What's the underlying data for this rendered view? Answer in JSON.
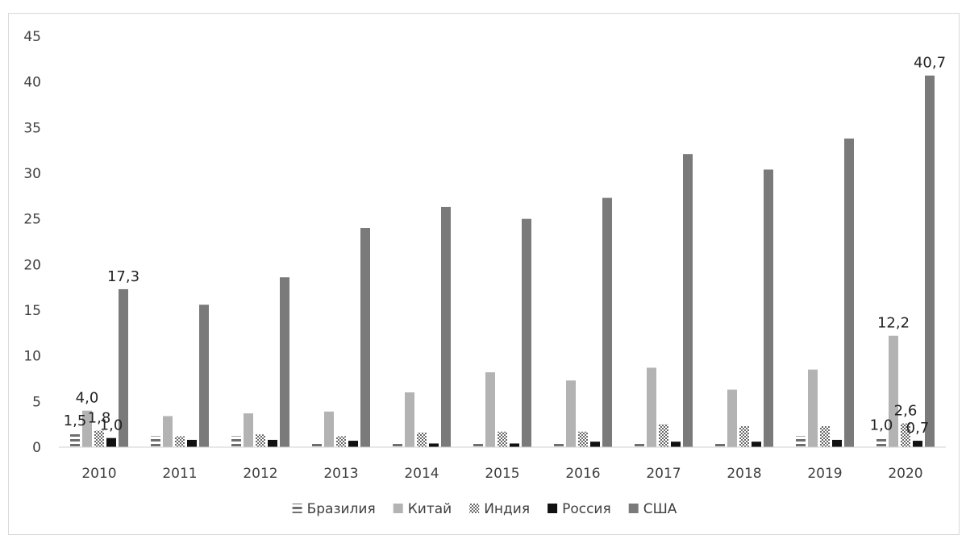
{
  "chart_data": {
    "type": "bar",
    "title": "",
    "xlabel": "",
    "ylabel": "",
    "ylim": [
      0,
      45
    ],
    "yticks": [
      0,
      5,
      10,
      15,
      20,
      25,
      30,
      35,
      40,
      45
    ],
    "grid": false,
    "legend_position": "bottom",
    "categories": [
      "2010",
      "2011",
      "2012",
      "2013",
      "2014",
      "2015",
      "2016",
      "2017",
      "2018",
      "2019",
      "2020"
    ],
    "series": [
      {
        "name": "Бразилия",
        "color": "#7f7f7f",
        "pattern": "striped",
        "values": [
          1.5,
          1.2,
          1.2,
          0.5,
          0.5,
          0.5,
          0.5,
          0.5,
          0.5,
          1.2,
          1.0
        ]
      },
      {
        "name": "Китай",
        "color": "#b3b3b3",
        "pattern": "solid",
        "values": [
          4.0,
          3.4,
          3.7,
          3.9,
          6.0,
          8.2,
          7.3,
          8.7,
          6.3,
          8.5,
          12.2
        ]
      },
      {
        "name": "Индия",
        "color": "#9a9a9a",
        "pattern": "checkered",
        "values": [
          1.8,
          1.2,
          1.4,
          1.2,
          1.6,
          1.7,
          1.7,
          2.5,
          2.3,
          2.3,
          2.6
        ]
      },
      {
        "name": "Россия",
        "color": "#111111",
        "pattern": "solid",
        "values": [
          1.0,
          0.8,
          0.8,
          0.7,
          0.4,
          0.4,
          0.6,
          0.6,
          0.6,
          0.8,
          0.7
        ]
      },
      {
        "name": "США",
        "color": "#7a7a7a",
        "pattern": "solid",
        "values": [
          17.3,
          15.6,
          18.6,
          24.0,
          26.3,
          25.0,
          27.3,
          32.1,
          30.4,
          33.8,
          40.7
        ]
      }
    ],
    "data_labels": [
      {
        "series": 0,
        "index": 0,
        "text": "1,5"
      },
      {
        "series": 1,
        "index": 0,
        "text": "4,0"
      },
      {
        "series": 2,
        "index": 0,
        "text": "1,8"
      },
      {
        "series": 3,
        "index": 0,
        "text": "1,0"
      },
      {
        "series": 4,
        "index": 0,
        "text": "17,3"
      },
      {
        "series": 0,
        "index": 10,
        "text": "1,0"
      },
      {
        "series": 1,
        "index": 10,
        "text": "12,2"
      },
      {
        "series": 2,
        "index": 10,
        "text": "2,6"
      },
      {
        "series": 3,
        "index": 10,
        "text": "0,7"
      },
      {
        "series": 4,
        "index": 10,
        "text": "40,7"
      }
    ]
  }
}
